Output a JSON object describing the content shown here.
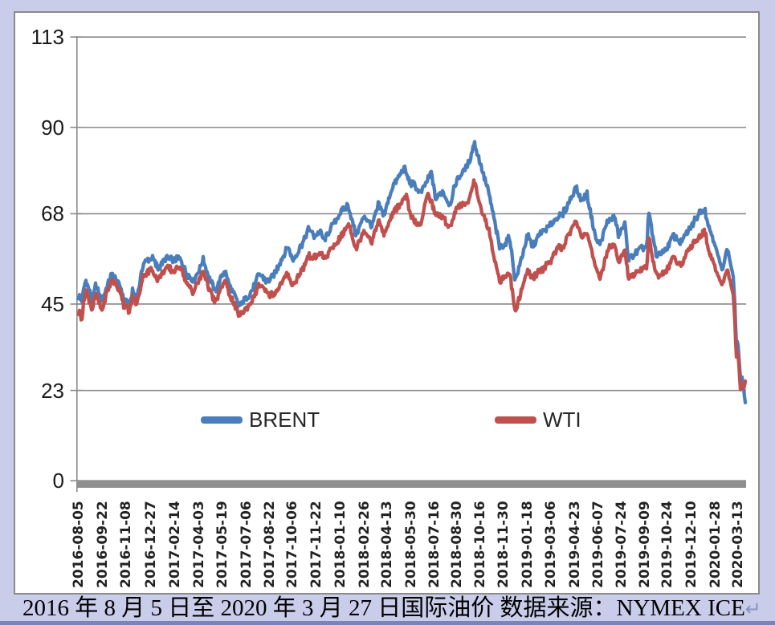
{
  "window": {
    "background_color": "#c9cdea",
    "bottom_strip_color": "#7c83b8",
    "panel_border_color": "#8a8a8a"
  },
  "caption": {
    "text": "2016 年 8 月 5 日至 2020 年 3 月 27 日国际油价 数据来源：NYMEX ICE",
    "return_mark": "↵"
  },
  "chart_data": {
    "type": "line",
    "title": "",
    "xlabel": "",
    "ylabel": "",
    "ylim": [
      0,
      113
    ],
    "yticks": [
      0,
      23,
      45,
      68,
      90,
      113
    ],
    "grid": true,
    "x_start": "2016-08-05",
    "x_end": "2020-03-27",
    "xticklabels": [
      "2016-08-05",
      "2016-09-22",
      "2016-11-08",
      "2016-12-27",
      "2017-02-14",
      "2017-04-03",
      "2017-05-19",
      "2017-07-06",
      "2017-08-22",
      "2017-10-06",
      "2017-11-22",
      "2018-01-10",
      "2018-02-26",
      "2018-04-13",
      "2018-05-30",
      "2018-07-16",
      "2018-08-30",
      "2018-10-16",
      "2018-11-30",
      "2019-01-18",
      "2019-03-06",
      "2019-04-23",
      "2019-06-07",
      "2019-07-24",
      "2019-09-09",
      "2019-10-24",
      "2019-12-10",
      "2020-01-28",
      "2020-03-13"
    ],
    "legend": {
      "position": "bottom-inside",
      "entries": [
        "BRENT",
        "WTI"
      ]
    },
    "colors": {
      "gridline": "#8a8a8a",
      "axis_bar": "#8f8f8f"
    },
    "series": [
      {
        "name": "BRENT",
        "color": "#4a7ebb",
        "keypoints": [
          [
            "2016-08-05",
            46.5
          ],
          [
            "2016-08-11",
            45.6
          ],
          [
            "2016-08-19",
            50.9
          ],
          [
            "2016-09-01",
            45.8
          ],
          [
            "2016-09-08",
            49.9
          ],
          [
            "2016-09-20",
            46.0
          ],
          [
            "2016-09-29",
            49.2
          ],
          [
            "2016-10-10",
            53.1
          ],
          [
            "2016-10-28",
            49.7
          ],
          [
            "2016-11-04",
            45.8
          ],
          [
            "2016-11-09",
            46.6
          ],
          [
            "2016-11-14",
            44.9
          ],
          [
            "2016-11-21",
            48.9
          ],
          [
            "2016-11-29",
            46.5
          ],
          [
            "2016-12-12",
            55.7
          ],
          [
            "2016-12-30",
            56.8
          ],
          [
            "2017-01-10",
            53.8
          ],
          [
            "2017-01-26",
            56.2
          ],
          [
            "2017-02-13",
            55.6
          ],
          [
            "2017-02-23",
            56.3
          ],
          [
            "2017-03-09",
            52.2
          ],
          [
            "2017-03-22",
            50.6
          ],
          [
            "2017-04-11",
            56.2
          ],
          [
            "2017-04-21",
            52.2
          ],
          [
            "2017-05-04",
            48.4
          ],
          [
            "2017-05-23",
            54.2
          ],
          [
            "2017-06-01",
            50.6
          ],
          [
            "2017-06-21",
            44.9
          ],
          [
            "2017-07-07",
            46.9
          ],
          [
            "2017-07-20",
            49.3
          ],
          [
            "2017-07-31",
            52.7
          ],
          [
            "2017-08-17",
            50.3
          ],
          [
            "2017-08-31",
            52.4
          ],
          [
            "2017-09-26",
            59.0
          ],
          [
            "2017-10-06",
            55.6
          ],
          [
            "2017-10-27",
            60.4
          ],
          [
            "2017-11-07",
            64.3
          ],
          [
            "2017-11-17",
            62.3
          ],
          [
            "2017-12-01",
            63.7
          ],
          [
            "2017-12-07",
            61.2
          ],
          [
            "2017-12-26",
            66.0
          ],
          [
            "2018-01-15",
            69.9
          ],
          [
            "2018-01-25",
            70.5
          ],
          [
            "2018-02-09",
            62.8
          ],
          [
            "2018-02-26",
            67.5
          ],
          [
            "2018-03-13",
            64.6
          ],
          [
            "2018-03-26",
            70.1
          ],
          [
            "2018-04-06",
            67.1
          ],
          [
            "2018-04-24",
            74.7
          ],
          [
            "2018-05-17",
            79.3
          ],
          [
            "2018-05-28",
            75.3
          ],
          [
            "2018-06-05",
            75.4
          ],
          [
            "2018-06-18",
            73.1
          ],
          [
            "2018-07-10",
            78.9
          ],
          [
            "2018-07-18",
            72.1
          ],
          [
            "2018-08-01",
            74.3
          ],
          [
            "2018-08-15",
            70.8
          ],
          [
            "2018-08-30",
            77.1
          ],
          [
            "2018-09-12",
            79.0
          ],
          [
            "2018-09-25",
            81.9
          ],
          [
            "2018-10-03",
            86.3
          ],
          [
            "2018-10-18",
            79.3
          ],
          [
            "2018-11-01",
            72.9
          ],
          [
            "2018-11-13",
            65.5
          ],
          [
            "2018-11-23",
            58.8
          ],
          [
            "2018-12-06",
            60.1
          ],
          [
            "2018-12-13",
            61.5
          ],
          [
            "2018-12-24",
            50.5
          ],
          [
            "2019-01-02",
            54.9
          ],
          [
            "2019-01-18",
            62.7
          ],
          [
            "2019-01-28",
            59.9
          ],
          [
            "2019-02-13",
            63.6
          ],
          [
            "2019-03-01",
            65.1
          ],
          [
            "2019-03-21",
            68.0
          ],
          [
            "2019-03-27",
            67.8
          ],
          [
            "2019-04-24",
            74.6
          ],
          [
            "2019-05-06",
            71.2
          ],
          [
            "2019-05-16",
            72.8
          ],
          [
            "2019-06-03",
            61.0
          ],
          [
            "2019-06-12",
            60.0
          ],
          [
            "2019-06-25",
            65.1
          ],
          [
            "2019-07-10",
            67.0
          ],
          [
            "2019-07-18",
            61.9
          ],
          [
            "2019-07-31",
            65.2
          ],
          [
            "2019-08-07",
            56.2
          ],
          [
            "2019-08-26",
            58.7
          ],
          [
            "2019-09-13",
            60.2
          ],
          [
            "2019-09-16",
            69.0
          ],
          [
            "2019-09-24",
            63.1
          ],
          [
            "2019-10-02",
            57.7
          ],
          [
            "2019-10-21",
            59.4
          ],
          [
            "2019-11-05",
            62.9
          ],
          [
            "2019-11-19",
            60.9
          ],
          [
            "2019-12-13",
            65.2
          ],
          [
            "2019-12-27",
            68.2
          ],
          [
            "2020-01-06",
            68.9
          ],
          [
            "2020-01-14",
            64.5
          ],
          [
            "2020-01-28",
            59.3
          ],
          [
            "2020-02-10",
            53.3
          ],
          [
            "2020-02-20",
            59.3
          ],
          [
            "2020-03-03",
            51.9
          ],
          [
            "2020-03-06",
            45.3
          ],
          [
            "2020-03-09",
            34.4
          ],
          [
            "2020-03-11",
            35.8
          ],
          [
            "2020-03-13",
            33.8
          ],
          [
            "2020-03-18",
            24.9
          ],
          [
            "2020-03-20",
            26.8
          ],
          [
            "2020-03-24",
            23.2
          ],
          [
            "2020-03-27",
            20.0
          ]
        ]
      },
      {
        "name": "WTI",
        "color": "#c0504d",
        "keypoints": [
          [
            "2016-08-05",
            42.5
          ],
          [
            "2016-08-11",
            41.2
          ],
          [
            "2016-08-19",
            48.5
          ],
          [
            "2016-09-01",
            43.2
          ],
          [
            "2016-09-08",
            47.6
          ],
          [
            "2016-09-20",
            43.4
          ],
          [
            "2016-09-29",
            47.8
          ],
          [
            "2016-10-10",
            51.4
          ],
          [
            "2016-10-28",
            48.7
          ],
          [
            "2016-11-04",
            44.1
          ],
          [
            "2016-11-09",
            45.3
          ],
          [
            "2016-11-14",
            43.3
          ],
          [
            "2016-11-21",
            47.5
          ],
          [
            "2016-11-29",
            45.2
          ],
          [
            "2016-12-12",
            52.8
          ],
          [
            "2016-12-30",
            53.7
          ],
          [
            "2017-01-10",
            50.8
          ],
          [
            "2017-01-26",
            53.8
          ],
          [
            "2017-02-13",
            52.9
          ],
          [
            "2017-02-23",
            54.5
          ],
          [
            "2017-03-09",
            49.3
          ],
          [
            "2017-03-22",
            48.0
          ],
          [
            "2017-04-11",
            53.4
          ],
          [
            "2017-04-21",
            49.6
          ],
          [
            "2017-05-04",
            45.5
          ],
          [
            "2017-05-23",
            51.5
          ],
          [
            "2017-06-01",
            48.3
          ],
          [
            "2017-06-21",
            42.5
          ],
          [
            "2017-07-07",
            44.2
          ],
          [
            "2017-07-20",
            46.8
          ],
          [
            "2017-07-31",
            50.2
          ],
          [
            "2017-08-17",
            47.1
          ],
          [
            "2017-08-31",
            47.2
          ],
          [
            "2017-09-26",
            52.2
          ],
          [
            "2017-10-06",
            49.3
          ],
          [
            "2017-10-27",
            53.9
          ],
          [
            "2017-11-07",
            57.4
          ],
          [
            "2017-11-17",
            56.6
          ],
          [
            "2017-12-01",
            58.4
          ],
          [
            "2017-12-07",
            56.7
          ],
          [
            "2017-12-29",
            60.4
          ],
          [
            "2018-01-16",
            63.7
          ],
          [
            "2018-01-26",
            66.1
          ],
          [
            "2018-02-09",
            59.2
          ],
          [
            "2018-02-26",
            63.9
          ],
          [
            "2018-03-13",
            60.7
          ],
          [
            "2018-03-26",
            65.9
          ],
          [
            "2018-04-06",
            62.1
          ],
          [
            "2018-04-24",
            67.7
          ],
          [
            "2018-05-21",
            72.2
          ],
          [
            "2018-05-29",
            66.9
          ],
          [
            "2018-06-18",
            64.8
          ],
          [
            "2018-07-03",
            74.1
          ],
          [
            "2018-07-18",
            68.2
          ],
          [
            "2018-08-01",
            67.7
          ],
          [
            "2018-08-15",
            65.0
          ],
          [
            "2018-08-30",
            70.3
          ],
          [
            "2018-09-12",
            70.4
          ],
          [
            "2018-09-25",
            72.3
          ],
          [
            "2018-10-03",
            76.4
          ],
          [
            "2018-10-18",
            68.7
          ],
          [
            "2018-11-01",
            63.7
          ],
          [
            "2018-11-13",
            55.7
          ],
          [
            "2018-11-23",
            50.4
          ],
          [
            "2018-12-06",
            51.5
          ],
          [
            "2018-12-13",
            52.6
          ],
          [
            "2018-12-24",
            42.5
          ],
          [
            "2019-01-02",
            46.5
          ],
          [
            "2019-01-18",
            53.8
          ],
          [
            "2019-01-28",
            51.9
          ],
          [
            "2019-02-13",
            54.0
          ],
          [
            "2019-03-01",
            55.8
          ],
          [
            "2019-03-21",
            60.0
          ],
          [
            "2019-03-27",
            59.4
          ],
          [
            "2019-04-23",
            66.3
          ],
          [
            "2019-05-06",
            62.3
          ],
          [
            "2019-05-16",
            62.9
          ],
          [
            "2019-06-03",
            53.3
          ],
          [
            "2019-06-12",
            51.1
          ],
          [
            "2019-06-25",
            57.8
          ],
          [
            "2019-07-10",
            60.4
          ],
          [
            "2019-07-18",
            55.3
          ],
          [
            "2019-07-31",
            58.6
          ],
          [
            "2019-08-07",
            51.1
          ],
          [
            "2019-08-26",
            53.6
          ],
          [
            "2019-09-13",
            54.9
          ],
          [
            "2019-09-16",
            62.9
          ],
          [
            "2019-09-24",
            57.3
          ],
          [
            "2019-10-02",
            52.5
          ],
          [
            "2019-10-21",
            53.8
          ],
          [
            "2019-11-05",
            57.2
          ],
          [
            "2019-11-19",
            55.2
          ],
          [
            "2019-12-13",
            60.1
          ],
          [
            "2019-12-27",
            61.7
          ],
          [
            "2020-01-06",
            63.3
          ],
          [
            "2020-01-14",
            58.2
          ],
          [
            "2020-01-28",
            53.5
          ],
          [
            "2020-02-10",
            49.6
          ],
          [
            "2020-02-20",
            53.8
          ],
          [
            "2020-03-03",
            47.2
          ],
          [
            "2020-03-06",
            41.3
          ],
          [
            "2020-03-09",
            31.1
          ],
          [
            "2020-03-11",
            32.9
          ],
          [
            "2020-03-13",
            31.7
          ],
          [
            "2020-03-18",
            22.0
          ],
          [
            "2020-03-20",
            24.8
          ],
          [
            "2020-03-24",
            23.6
          ],
          [
            "2020-03-27",
            25.2
          ]
        ]
      }
    ]
  }
}
